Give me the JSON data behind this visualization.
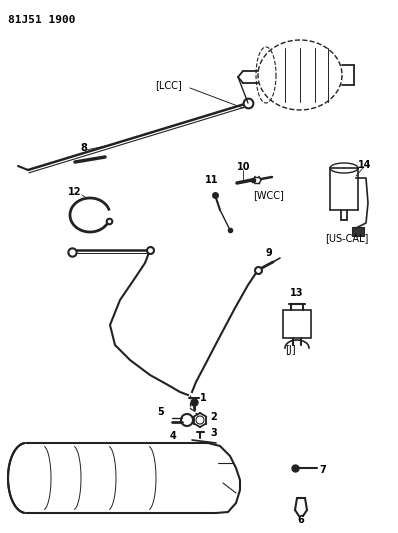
{
  "title": "81J51 1900",
  "bg_color": "#ffffff",
  "line_color": "#222222",
  "text_color": "#000000",
  "fig_width": 3.98,
  "fig_height": 5.33,
  "dpi": 100,
  "labels": {
    "LCC": "[LCC]",
    "WCC": "[WCC]",
    "US_CAL": "[US-CAL]",
    "J": "[J]"
  }
}
